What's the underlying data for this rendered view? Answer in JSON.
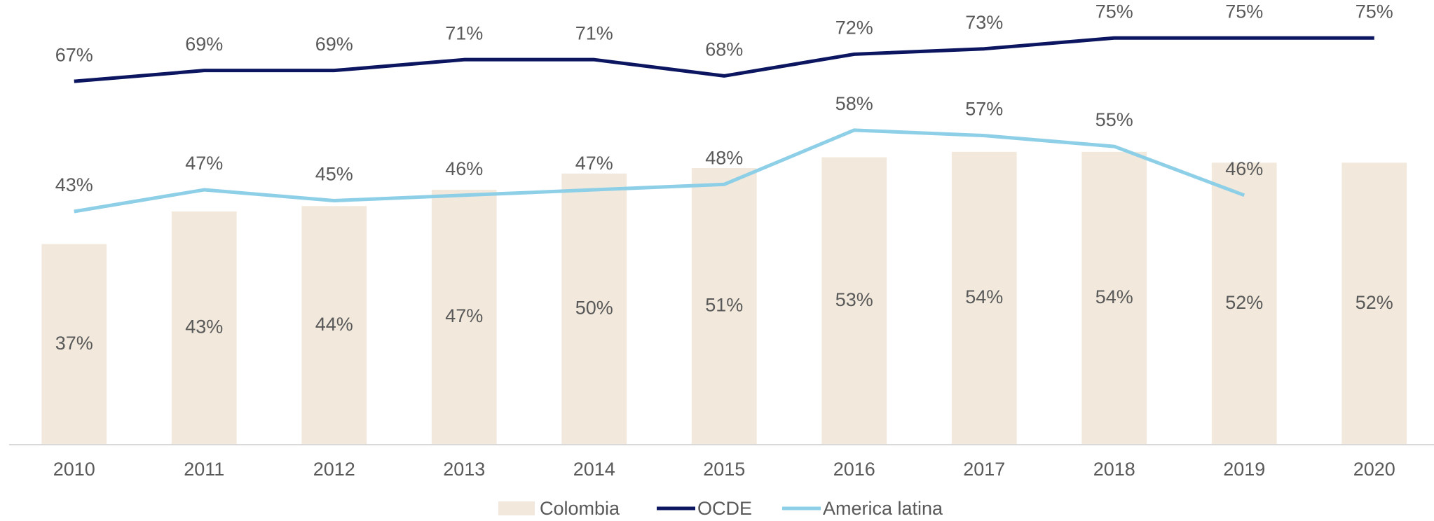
{
  "chart_data": {
    "type": "bar-line",
    "categories": [
      "2010",
      "2011",
      "2012",
      "2013",
      "2014",
      "2015",
      "2016",
      "2017",
      "2018",
      "2019",
      "2020"
    ],
    "ylim": [
      0,
      82
    ],
    "series": [
      {
        "name": "Colombia",
        "type": "bar",
        "color": "#f2e9dc",
        "values": [
          37,
          43,
          44,
          47,
          50,
          51,
          53,
          54,
          54,
          52,
          52
        ],
        "value_labels": [
          "37%",
          "43%",
          "44%",
          "47%",
          "50%",
          "51%",
          "53%",
          "54%",
          "54%",
          "52%",
          "52%"
        ]
      },
      {
        "name": "OCDE",
        "type": "line",
        "color": "#0b1560",
        "values": [
          67,
          69,
          69,
          71,
          71,
          68,
          72,
          73,
          75,
          75,
          75
        ],
        "value_labels": [
          "67%",
          "69%",
          "69%",
          "71%",
          "71%",
          "68%",
          "72%",
          "73%",
          "75%",
          "75%",
          "75%"
        ]
      },
      {
        "name": "America latina",
        "type": "line",
        "color": "#8ecfe8",
        "values": [
          43,
          47,
          45,
          46,
          47,
          48,
          58,
          57,
          55,
          46,
          null
        ],
        "value_labels": [
          "43%",
          "47%",
          "45%",
          "46%",
          "47%",
          "48%",
          "58%",
          "57%",
          "55%",
          "46%",
          null
        ]
      }
    ]
  }
}
